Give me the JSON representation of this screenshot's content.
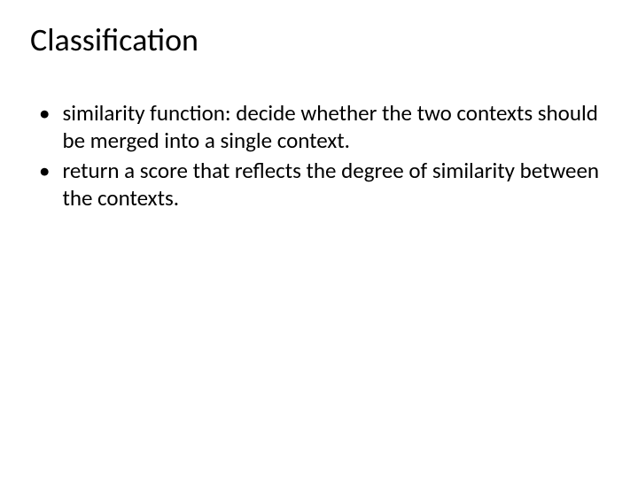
{
  "slide": {
    "title": "Classification",
    "bullets": [
      {
        "marker": "•",
        "text": "similarity function: decide whether the two contexts should be merged into a single context."
      },
      {
        "marker": "•",
        "text": "return a score that reflects the degree of similarity between the contexts."
      }
    ]
  },
  "styling": {
    "background_color": "#ffffff",
    "text_color": "#000000",
    "title_fontsize": 36,
    "body_fontsize": 25,
    "font_family": "Calibri"
  }
}
